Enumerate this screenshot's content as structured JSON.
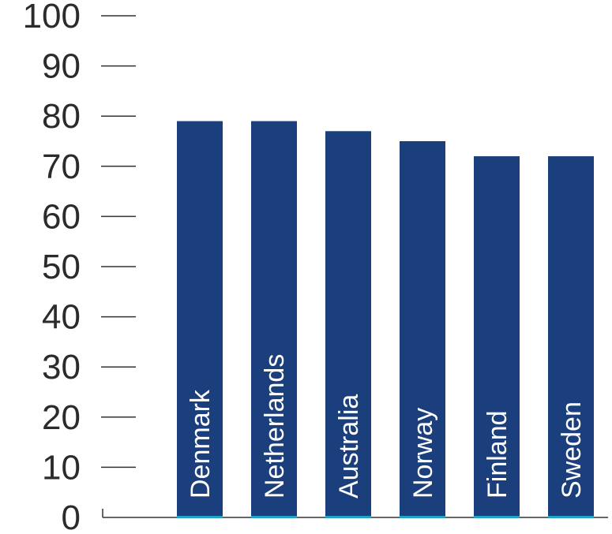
{
  "chart_data": {
    "type": "bar",
    "categories": [
      "Denmark",
      "Netherlands",
      "Australia",
      "Norway",
      "Finland",
      "Sweden"
    ],
    "values": [
      79,
      79,
      77,
      75,
      72,
      72
    ],
    "ylim": [
      0,
      100
    ],
    "yticks": [
      0,
      10,
      20,
      30,
      40,
      50,
      60,
      70,
      80,
      90,
      100
    ],
    "bar_color": "#1b3f7c",
    "bar_edge_color": "#1fa3c8",
    "grid": false
  }
}
